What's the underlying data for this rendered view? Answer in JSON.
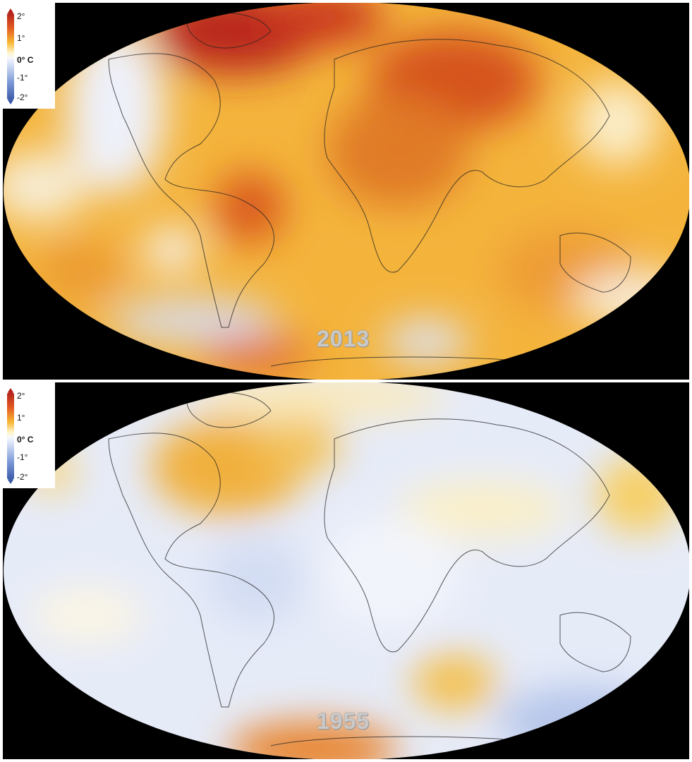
{
  "panels": [
    {
      "year": "2013",
      "legend": {
        "ticks": [
          "2°",
          "1°",
          "0° C",
          "-1°",
          "-2°"
        ],
        "colors": [
          "#b3221b",
          "#f7b733",
          "#f5f7ff",
          "#7a97d6",
          "#3a5aa8"
        ]
      },
      "base_color": "#f6b13a"
    },
    {
      "year": "1955",
      "legend": {
        "ticks": [
          "2°",
          "1°",
          "0° C",
          "-1°",
          "-2°"
        ],
        "colors": [
          "#b3221b",
          "#f7b733",
          "#f5f7ff",
          "#7a97d6",
          "#3a5aa8"
        ]
      },
      "base_color": "#e4e9f8"
    }
  ]
}
